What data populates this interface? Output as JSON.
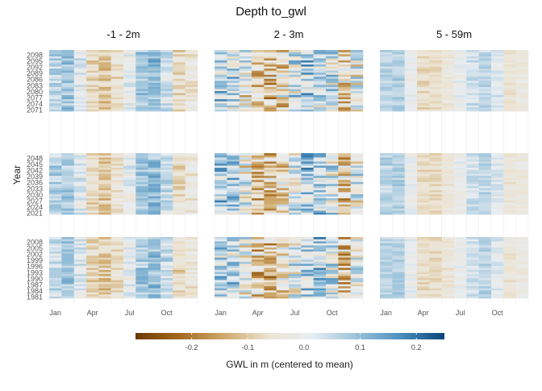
{
  "chart_data": {
    "type": "heatmap",
    "title": "Depth to_gwl",
    "ylabel": "Year",
    "facet_columns": [
      "-1 - 2m",
      "2 - 3m",
      "5 - 59m"
    ],
    "x_ticks": [
      "Jan",
      "Apr",
      "Jul",
      "Oct"
    ],
    "x_tick_months": [
      1,
      4,
      7,
      10
    ],
    "months_per_row": 12,
    "rows": [
      {
        "name": "2071-2098",
        "year_range": [
          2071,
          2100
        ],
        "y_ticks": [
          2071,
          2074,
          2077,
          2080,
          2083,
          2086,
          2089,
          2092,
          2095,
          2098
        ]
      },
      {
        "name": "2021-2048",
        "year_range": [
          2021,
          2050
        ],
        "y_ticks": [
          2021,
          2024,
          2027,
          2030,
          2033,
          2036,
          2039,
          2042,
          2045,
          2048
        ]
      },
      {
        "name": "1981-2008",
        "year_range": [
          1981,
          2010
        ],
        "y_ticks": [
          1981,
          1984,
          1987,
          1990,
          1993,
          1996,
          1999,
          2002,
          2005,
          2008
        ]
      }
    ],
    "monthly_profile": {
      "-1 - 2m": [
        0.06,
        0.08,
        0.02,
        -0.07,
        -0.1,
        -0.06,
        0.0,
        0.08,
        0.1,
        0.04,
        -0.07,
        -0.04
      ],
      "2 - 3m": [
        0.06,
        0.05,
        -0.02,
        -0.09,
        -0.1,
        -0.05,
        0.02,
        0.06,
        0.06,
        0.02,
        -0.08,
        0.0
      ],
      "5 - 59m": [
        0.06,
        0.07,
        0.0,
        -0.07,
        -0.07,
        -0.04,
        0.0,
        0.04,
        0.06,
        0.02,
        -0.05,
        -0.03
      ]
    },
    "noise_amplitude": {
      "-1 - 2m": 0.05,
      "2 - 3m": 0.12,
      "5 - 59m": 0.03
    },
    "colorbar": {
      "label": "GWL in m (centered to mean)",
      "range": [
        -0.3,
        0.25
      ],
      "ticks": [
        -0.2,
        -0.1,
        0.0,
        0.1,
        0.2
      ],
      "tick_labels": [
        "-0.2",
        "-0.1",
        "0.0",
        "0.1",
        "0.2"
      ],
      "colors": [
        "#6b3a00",
        "#a6691e",
        "#cfa96b",
        "#ece3d2",
        "#e8edf2",
        "#9bc3da",
        "#4d8fbf",
        "#08457a"
      ]
    }
  }
}
